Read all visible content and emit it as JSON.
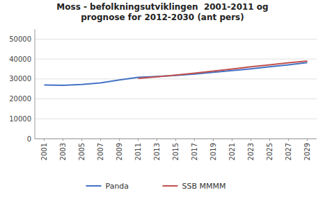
{
  "chart_data": {
    "type": "line",
    "title": "Moss - befolkningsutviklingen  2001-2011 og\nprognose for 2012-2030 (ant pers)",
    "x": [
      2001,
      2003,
      2005,
      2007,
      2009,
      2011,
      2013,
      2015,
      2017,
      2019,
      2021,
      2023,
      2025,
      2027,
      2029
    ],
    "series": [
      {
        "name": "Panda",
        "color": "#4472C4",
        "values": [
          27000,
          26800,
          27200,
          28000,
          29500,
          30800,
          31200,
          31800,
          32500,
          33300,
          34200,
          35100,
          36100,
          37100,
          38200
        ]
      },
      {
        "name": "SSB MMMM",
        "color": "#C0504D",
        "values": [
          null,
          null,
          null,
          null,
          null,
          30300,
          31100,
          31900,
          32900,
          33900,
          35000,
          36100,
          37100,
          38100,
          39000
        ]
      }
    ],
    "xlim": [
      2000,
      2030
    ],
    "xticks": [
      2001,
      2003,
      2005,
      2007,
      2009,
      2011,
      2013,
      2015,
      2017,
      2019,
      2021,
      2023,
      2025,
      2027,
      2029
    ],
    "ylim": [
      0,
      55000
    ],
    "yticks": [
      0,
      10000,
      20000,
      30000,
      40000,
      50000
    ],
    "grid": true,
    "legend": "bottom"
  }
}
